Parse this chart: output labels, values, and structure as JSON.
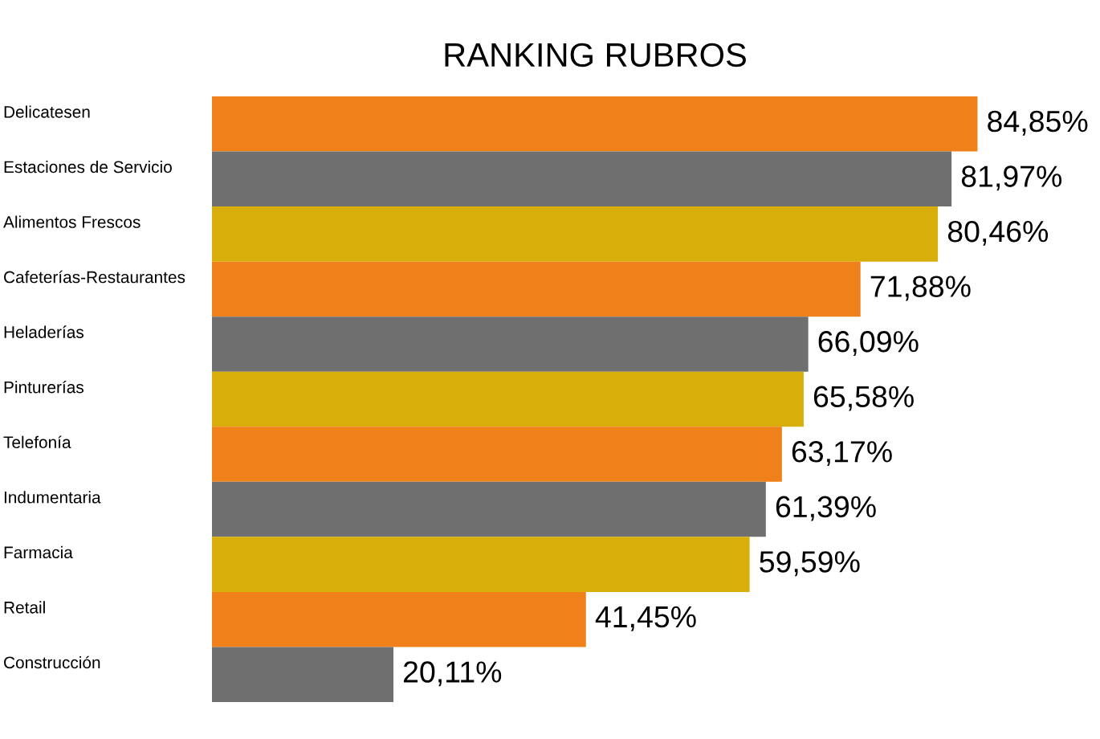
{
  "chart_data": {
    "type": "bar",
    "orientation": "horizontal",
    "title": "RANKING RUBROS",
    "categories": [
      "Delicatesen",
      "Estaciones de Servicio",
      "Alimentos Frescos",
      "Cafeterías-Restaurantes",
      "Heladerías",
      "Pinturerías",
      "Telefonía",
      "Indumentaria",
      "Farmacia",
      "Retail",
      "Construcción"
    ],
    "values": [
      84.85,
      81.97,
      80.46,
      71.88,
      66.09,
      65.58,
      63.17,
      61.39,
      59.59,
      41.45,
      20.11
    ],
    "colors": [
      "#f0801a",
      "#6f6f6f",
      "#d8ae0a",
      "#f0801a",
      "#6f6f6f",
      "#d8ae0a",
      "#f0801a",
      "#6f6f6f",
      "#d8ae0a",
      "#f0801a",
      "#6f6f6f"
    ],
    "value_labels": [
      "84,85%",
      "81,97%",
      "80,46%",
      "71,88%",
      "66,09%",
      "65,58%",
      "63,17%",
      "61,39%",
      "59,59%",
      "41,45%",
      "20,11%"
    ],
    "tick_labels": "y"
  }
}
